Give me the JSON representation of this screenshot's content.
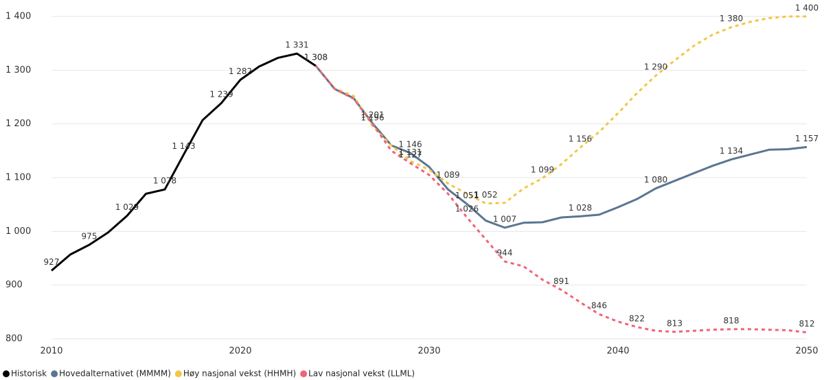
{
  "chart_data": {
    "type": "line",
    "xlim": [
      2010,
      2050
    ],
    "xticks": [
      2010,
      2020,
      2030,
      2040,
      2050
    ],
    "ylim": [
      800,
      1400
    ],
    "yticks": [
      800,
      900,
      {
        "value": 1000,
        "label": "1 000"
      },
      {
        "value": 1100,
        "label": "1 100"
      },
      {
        "value": 1200,
        "label": "1 200"
      },
      {
        "value": 1300,
        "label": "1 300"
      },
      {
        "value": 1400,
        "label": "1 400"
      }
    ],
    "grid": true,
    "legend": "bottom-left",
    "series": [
      {
        "name": "Historisk",
        "color": "#000000",
        "dashed": false,
        "x": [
          2010,
          2011,
          2012,
          2013,
          2014,
          2015,
          2016,
          2017,
          2018,
          2019,
          2020,
          2021,
          2022,
          2023,
          2024
        ],
        "values": [
          927,
          957,
          975,
          998,
          1029,
          1070,
          1078,
          1143,
          1207,
          1239,
          1282,
          1307,
          1323,
          1331,
          1308
        ],
        "value_labels": [
          "927",
          null,
          "975",
          null,
          "1 029",
          null,
          "1 078",
          "1 143",
          null,
          "1 239",
          "1 282",
          null,
          null,
          "1 331",
          "1 308"
        ]
      },
      {
        "name": "Hovedalternativet (MMMM)",
        "color": "#5a7590",
        "dashed": false,
        "x": [
          2024,
          2025,
          2026,
          2027,
          2028,
          2029,
          2030,
          2031,
          2032,
          2033,
          2034,
          2035,
          2036,
          2037,
          2038,
          2039,
          2040,
          2041,
          2042,
          2043,
          2044,
          2045,
          2046,
          2047,
          2048,
          2049,
          2050
        ],
        "values": [
          1308,
          1265,
          1248,
          1201,
          1160,
          1146,
          1120,
          1078,
          1051,
          1020,
          1007,
          1016,
          1017,
          1026,
          1028,
          1031,
          1045,
          1060,
          1080,
          1094,
          1108,
          1122,
          1134,
          1143,
          1152,
          1153,
          1157
        ],
        "value_labels": [
          "1 308",
          null,
          null,
          "1 201",
          null,
          "1 146",
          null,
          null,
          "1 051",
          null,
          "1 007",
          null,
          null,
          null,
          "1 028",
          null,
          null,
          null,
          "1 080",
          null,
          null,
          null,
          "1 134",
          null,
          null,
          null,
          "1 157"
        ]
      },
      {
        "name": "Høy nasjonal vekst (HHMH)",
        "color": "#f2c744",
        "dashed": true,
        "x": [
          2024,
          2025,
          2026,
          2027,
          2028,
          2029,
          2030,
          2031,
          2032,
          2033,
          2034,
          2035,
          2036,
          2037,
          2038,
          2039,
          2040,
          2041,
          2042,
          2043,
          2044,
          2045,
          2046,
          2047,
          2048,
          2049,
          2050
        ],
        "values": [
          1308,
          1266,
          1252,
          1196,
          1160,
          1131,
          1115,
          1089,
          1070,
          1052,
          1053,
          1080,
          1099,
          1125,
          1156,
          1185,
          1220,
          1257,
          1290,
          1318,
          1345,
          1366,
          1380,
          1390,
          1397,
          1400,
          1400
        ],
        "value_labels": [
          null,
          null,
          null,
          "1 196",
          null,
          "1 131",
          null,
          "1 089",
          null,
          "1 052",
          null,
          null,
          "1 099",
          null,
          "1 156",
          null,
          null,
          null,
          "1 290",
          null,
          null,
          null,
          "1 380",
          null,
          null,
          null,
          "1 400"
        ]
      },
      {
        "name": "Lav nasjonal vekst (LLML)",
        "color": "#f06478",
        "dashed": true,
        "x": [
          2024,
          2025,
          2026,
          2027,
          2028,
          2029,
          2030,
          2031,
          2032,
          2033,
          2034,
          2035,
          2036,
          2037,
          2038,
          2039,
          2040,
          2041,
          2042,
          2043,
          2044,
          2045,
          2046,
          2047,
          2048,
          2049,
          2050
        ],
        "values": [
          1308,
          1265,
          1247,
          1200,
          1150,
          1127,
          1105,
          1070,
          1026,
          985,
          944,
          935,
          910,
          891,
          868,
          846,
          832,
          822,
          815,
          813,
          815,
          817,
          818,
          818,
          817,
          816,
          812
        ],
        "value_labels": [
          null,
          null,
          null,
          null,
          null,
          "1 127",
          null,
          null,
          "1 026",
          null,
          "944",
          null,
          null,
          "891",
          null,
          "846",
          null,
          "822",
          null,
          "813",
          null,
          null,
          "818",
          null,
          null,
          null,
          "812"
        ]
      }
    ]
  }
}
